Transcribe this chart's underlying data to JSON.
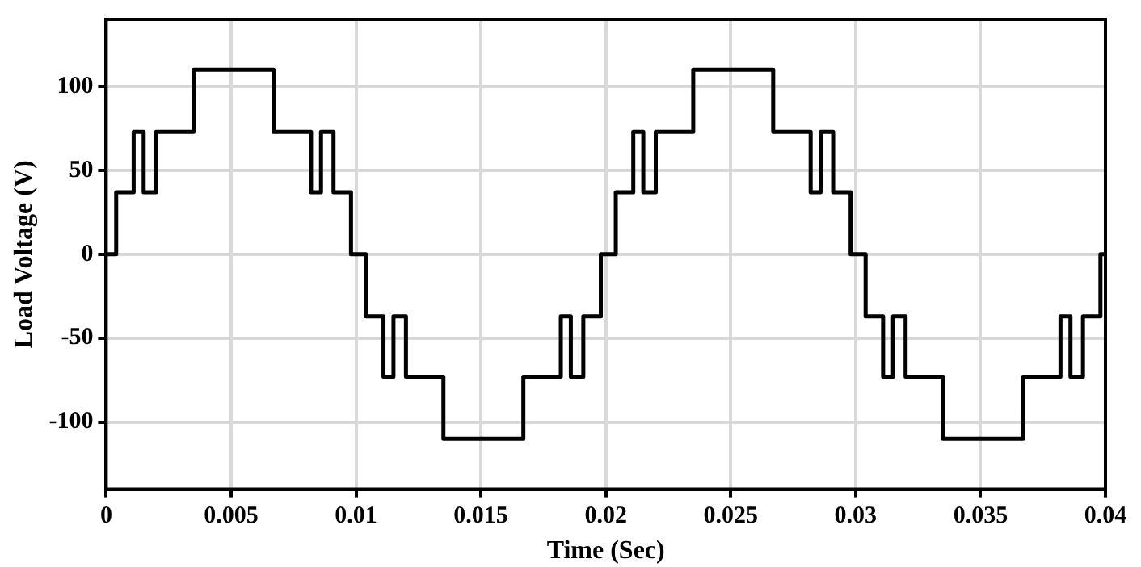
{
  "chart_data": {
    "type": "step",
    "xlabel": "Time (Sec)",
    "ylabel": "Load Voltage (V)",
    "x": [
      0,
      0.0004,
      0.0011,
      0.0015,
      0.002,
      0.0035,
      0.0067,
      0.0082,
      0.0086,
      0.0091,
      0.0098,
      0.0104,
      0.0111,
      0.0115,
      0.012,
      0.0135,
      0.0167,
      0.0182,
      0.0186,
      0.0191,
      0.0198,
      0.0204,
      0.0211,
      0.0215,
      0.022,
      0.0235,
      0.0267,
      0.0282,
      0.0286,
      0.0291,
      0.0298,
      0.0304,
      0.0311,
      0.0315,
      0.032,
      0.0335,
      0.0367,
      0.0382,
      0.0386,
      0.0391,
      0.0398,
      0.04
    ],
    "series": [
      {
        "color": "#000000",
        "values": [
          0,
          37,
          73,
          37,
          73,
          110,
          73,
          37,
          73,
          37,
          0,
          -37,
          -73,
          -37,
          -73,
          -110,
          -73,
          -37,
          -73,
          -37,
          0,
          37,
          73,
          37,
          73,
          110,
          73,
          37,
          73,
          37,
          0,
          -37,
          -73,
          -37,
          -73,
          -110,
          -73,
          -37,
          -73,
          -37,
          0,
          0
        ]
      }
    ],
    "xlim": [
      0,
      0.04
    ],
    "xticks": [
      0,
      0.005,
      0.01,
      0.015,
      0.02,
      0.025,
      0.03,
      0.035,
      0.04
    ],
    "ylim": [
      -140,
      140
    ],
    "yticks": [
      -100,
      -50,
      0,
      50,
      100
    ],
    "grid": true,
    "legend": false,
    "line_style": "solid",
    "marker": "none"
  }
}
